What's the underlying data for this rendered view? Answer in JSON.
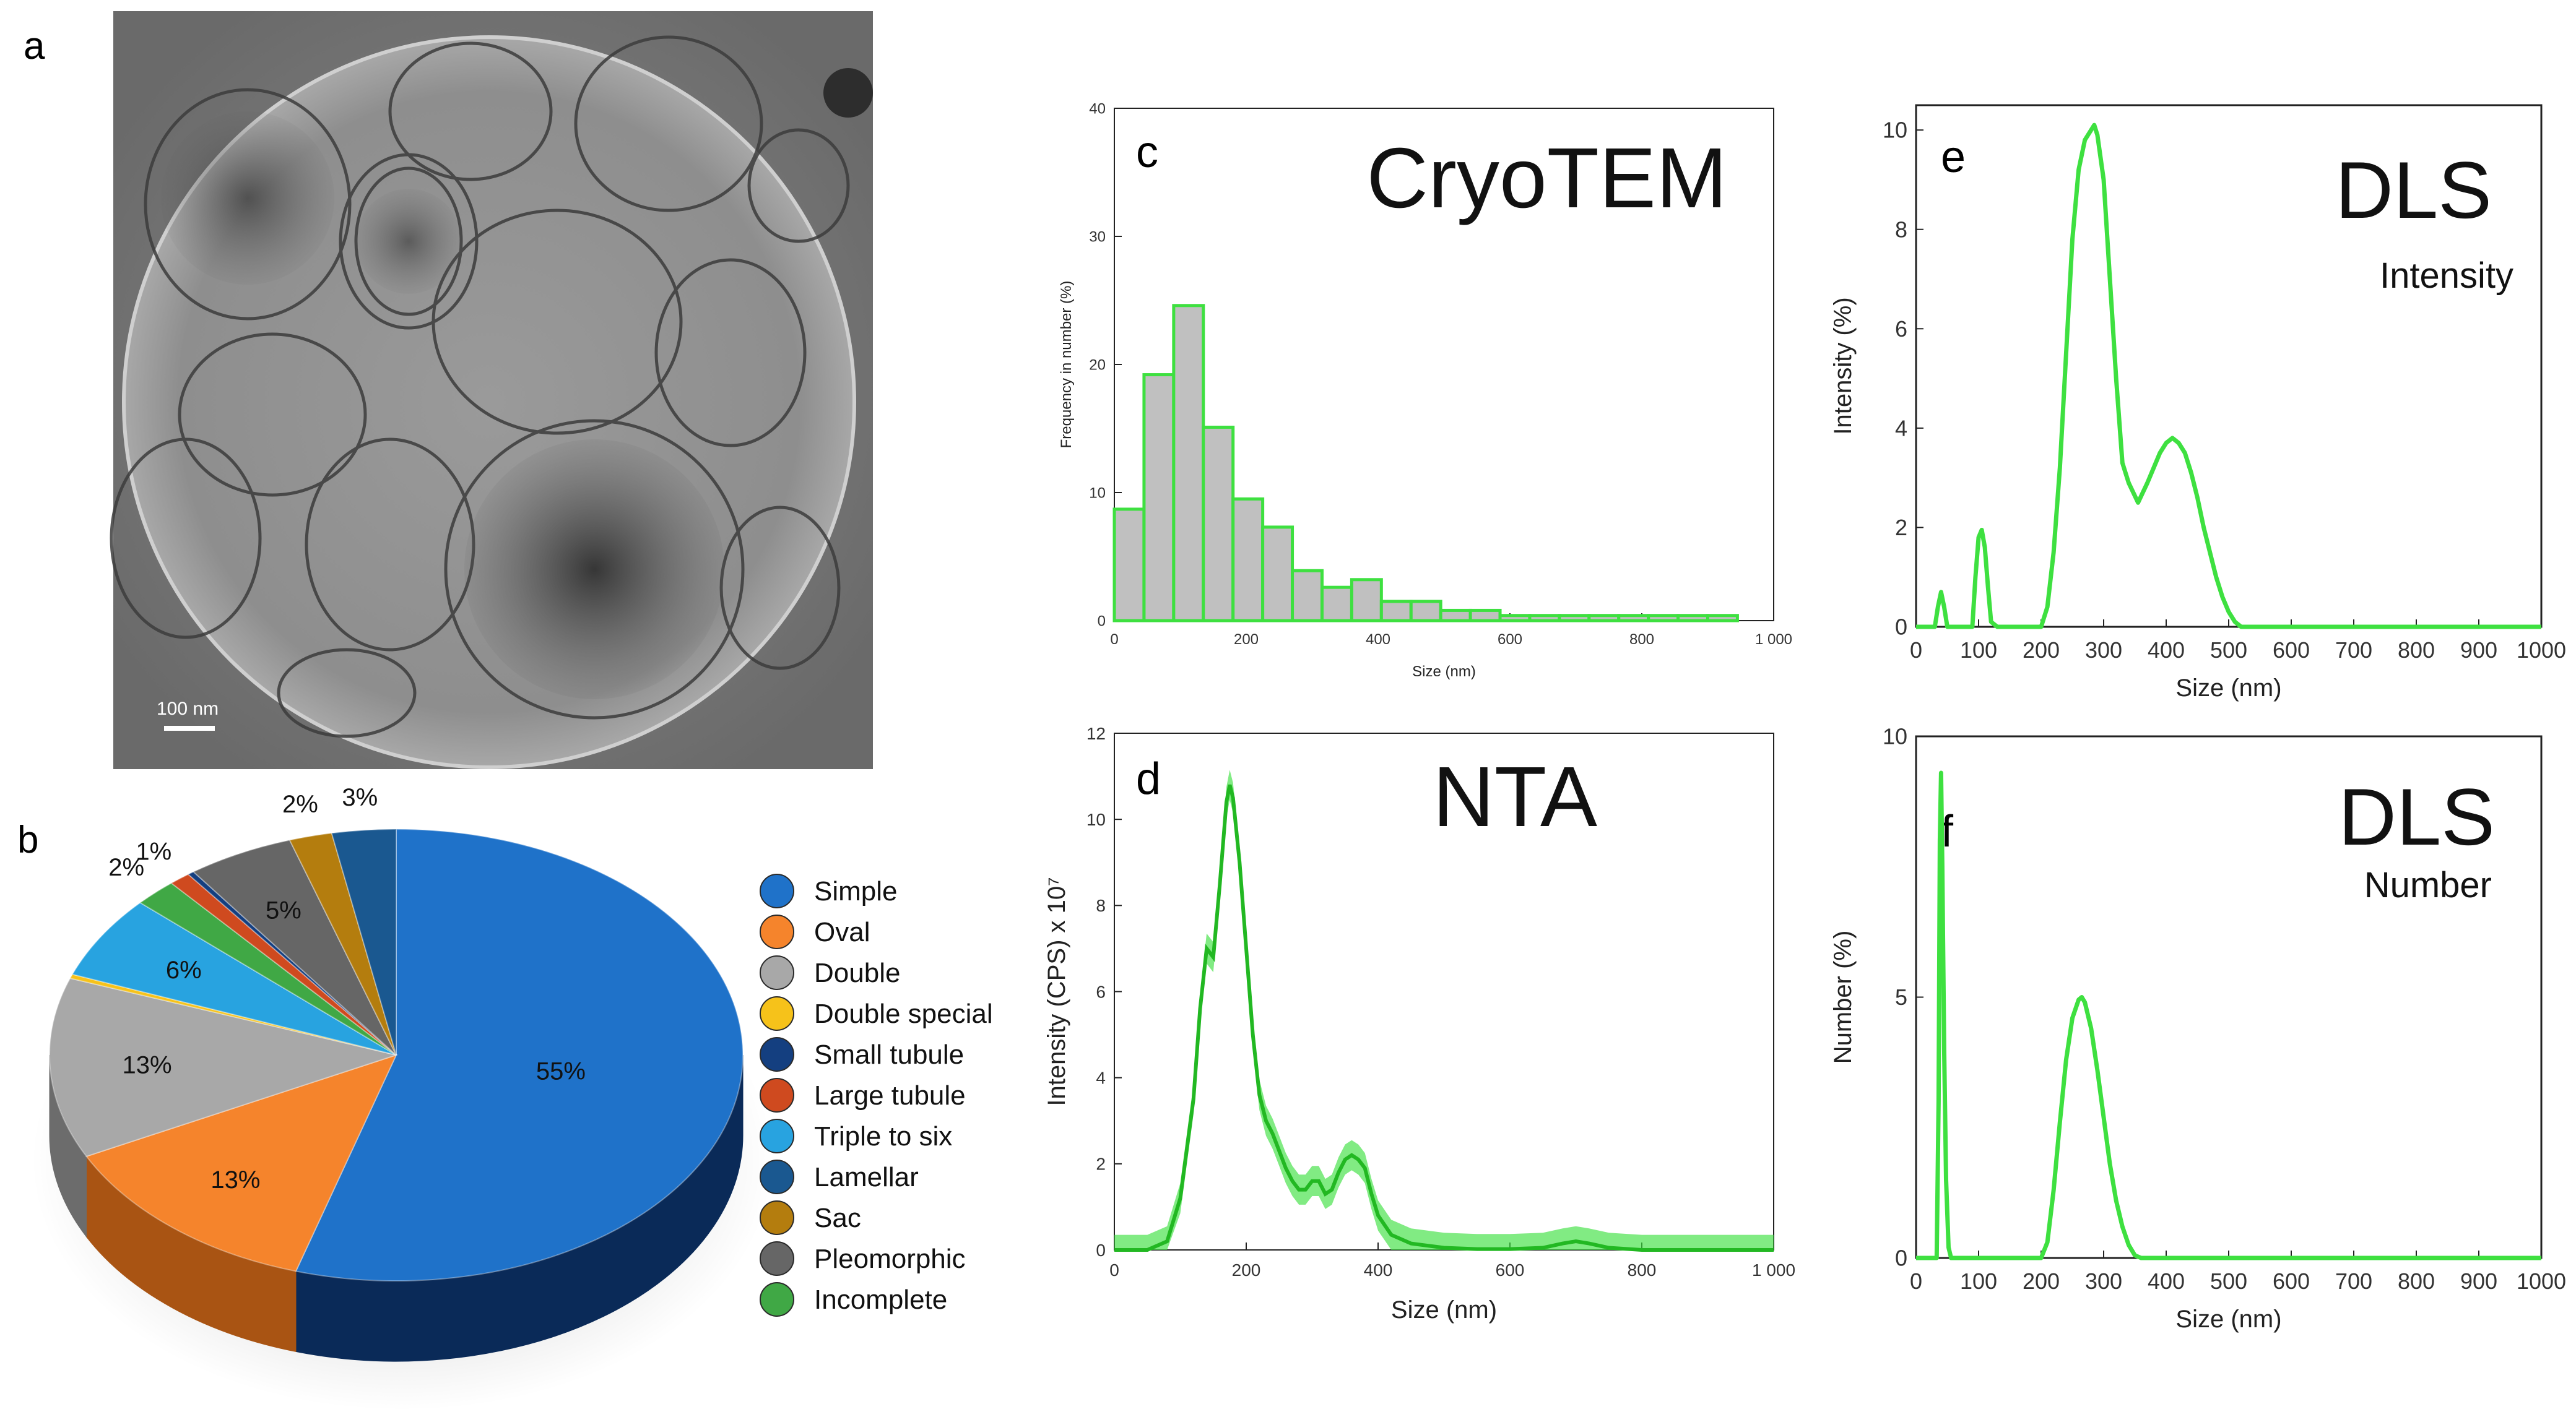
{
  "panel_labels": {
    "a": "a",
    "b": "b",
    "c": "c",
    "d": "d",
    "e": "e",
    "f": "f"
  },
  "micrograph": {
    "scale_bar_label": "100 nm"
  },
  "chart_data": [
    {
      "id": "b",
      "type": "pie",
      "slices": [
        {
          "label": "Simple",
          "value": 55,
          "text": "55%",
          "color": "#1f72c9",
          "side": "#0a2a58"
        },
        {
          "label": "Oval",
          "value": 13,
          "text": "13%",
          "color": "#f5842c",
          "side": "#a95413"
        },
        {
          "label": "Double",
          "value": 13,
          "text": "13%",
          "color": "#a8a8a8",
          "side": "#6c6c6c"
        },
        {
          "label": "Double special",
          "value": 0.3,
          "text": "",
          "color": "#f6c21a",
          "side": "#a37f0c"
        },
        {
          "label": "Triple to six",
          "value": 6,
          "text": "6%",
          "color": "#28a3e0",
          "side": "#14689a"
        },
        {
          "label": "Incomplete",
          "value": 2,
          "text": "2%",
          "color": "#40a845",
          "side": "#236b27"
        },
        {
          "label": "Large tubule",
          "value": 1,
          "text": "1%",
          "color": "#cf4a1f",
          "side": "#842b10"
        },
        {
          "label": "Small tubule",
          "value": 0.3,
          "text": "",
          "color": "#143f80",
          "side": "#0b2348"
        },
        {
          "label": "Pleomorphic",
          "value": 5,
          "text": "5%",
          "color": "#666666",
          "side": "#3c3c3c"
        },
        {
          "label": "Sac",
          "value": 2,
          "text": "2%",
          "color": "#b47d0e",
          "side": "#6d4a06"
        },
        {
          "label": "Lamellar",
          "value": 3,
          "text": "3%",
          "color": "#1a5890",
          "side": "#0c3158"
        }
      ],
      "legend": [
        {
          "label": "Simple",
          "color": "#1f72c9"
        },
        {
          "label": "Oval",
          "color": "#f5842c"
        },
        {
          "label": "Double",
          "color": "#a8a8a8"
        },
        {
          "label": "Double special",
          "color": "#f6c21a"
        },
        {
          "label": "Small tubule",
          "color": "#143f80"
        },
        {
          "label": "Large tubule",
          "color": "#cf4a1f"
        },
        {
          "label": "Triple to six",
          "color": "#28a3e0"
        },
        {
          "label": "Lamellar",
          "color": "#1a5890"
        },
        {
          "label": "Sac",
          "color": "#b47d0e"
        },
        {
          "label": "Pleomorphic",
          "color": "#666666"
        },
        {
          "label": "Incomplete",
          "color": "#40a845"
        }
      ]
    },
    {
      "id": "c",
      "type": "bar",
      "title": "CryoTEM",
      "xlabel": "Size (nm)",
      "ylabel": "Frequency in number (%)",
      "xlim": [
        0,
        1000
      ],
      "ylim": [
        0,
        40
      ],
      "xticks": [
        0,
        200,
        400,
        600,
        800,
        1000
      ],
      "xtick_labels": [
        "0",
        "200",
        "400",
        "600",
        "800",
        "1 000"
      ],
      "yticks": [
        0,
        10,
        20,
        30,
        40
      ],
      "bin_width": 45,
      "x": [
        0,
        45,
        90,
        135,
        180,
        225,
        270,
        315,
        360,
        405,
        450,
        495,
        540,
        585,
        630,
        675,
        720,
        765,
        810,
        855,
        900
      ],
      "values": [
        8.7,
        19.2,
        24.6,
        15.1,
        9.5,
        7.3,
        3.9,
        2.6,
        3.2,
        1.5,
        1.5,
        0.8,
        0.8,
        0.4,
        0.4,
        0.4,
        0.4,
        0.4,
        0.4,
        0.4,
        0.4
      ],
      "bar_color": "#c0c0c0",
      "edge_color": "#3ee040"
    },
    {
      "id": "d",
      "type": "line",
      "title": "NTA",
      "xlabel": "Size (nm)",
      "ylabel": "Intensity (CPS) x 10⁷",
      "xlim": [
        0,
        1000
      ],
      "ylim": [
        0,
        12
      ],
      "xticks": [
        0,
        200,
        400,
        600,
        800,
        1000
      ],
      "xtick_labels": [
        "0",
        "200",
        "400",
        "600",
        "800",
        "1 000"
      ],
      "yticks": [
        0,
        2,
        4,
        6,
        8,
        10,
        12
      ],
      "x": [
        0,
        50,
        80,
        100,
        120,
        130,
        140,
        150,
        160,
        170,
        175,
        180,
        190,
        200,
        210,
        220,
        230,
        240,
        250,
        260,
        270,
        280,
        290,
        300,
        310,
        320,
        330,
        340,
        350,
        360,
        370,
        380,
        390,
        400,
        420,
        450,
        500,
        550,
        600,
        650,
        680,
        700,
        720,
        750,
        800,
        900,
        1000
      ],
      "values": [
        0,
        0,
        0.2,
        1.2,
        3.5,
        5.6,
        7.0,
        6.8,
        8.5,
        10.4,
        10.8,
        10.5,
        9.0,
        7.0,
        5.0,
        3.6,
        3.0,
        2.7,
        2.3,
        1.9,
        1.6,
        1.4,
        1.4,
        1.6,
        1.6,
        1.3,
        1.4,
        1.8,
        2.1,
        2.2,
        2.1,
        1.9,
        1.3,
        0.8,
        0.35,
        0.15,
        0.05,
        0.02,
        0.02,
        0.05,
        0.15,
        0.2,
        0.15,
        0.05,
        0,
        0,
        0
      ],
      "band": 0.35,
      "color": "#3ee040"
    },
    {
      "id": "e",
      "type": "line",
      "title": "DLS",
      "subtitle": "Intensity",
      "xlabel": "Size (nm)",
      "ylabel": "Intensity (%)",
      "xlim": [
        0,
        1000
      ],
      "ylim": [
        0,
        10.5
      ],
      "xticks": [
        0,
        100,
        200,
        300,
        400,
        500,
        600,
        700,
        800,
        900,
        1000
      ],
      "yticks": [
        0,
        2,
        4,
        6,
        8,
        10
      ],
      "x": [
        0,
        20,
        30,
        35,
        40,
        45,
        50,
        60,
        80,
        90,
        95,
        100,
        105,
        110,
        115,
        120,
        130,
        140,
        160,
        180,
        200,
        210,
        220,
        230,
        240,
        250,
        260,
        270,
        280,
        285,
        290,
        300,
        310,
        320,
        330,
        340,
        355,
        370,
        380,
        390,
        400,
        410,
        420,
        430,
        440,
        450,
        460,
        470,
        480,
        490,
        500,
        510,
        520,
        600,
        800,
        1000
      ],
      "values": [
        0,
        0,
        0,
        0.4,
        0.7,
        0.4,
        0,
        0,
        0,
        0,
        1.0,
        1.8,
        1.95,
        1.6,
        0.8,
        0.1,
        0,
        0,
        0,
        0,
        0,
        0.4,
        1.5,
        3.2,
        5.5,
        7.8,
        9.2,
        9.8,
        10.0,
        10.1,
        9.9,
        9.0,
        7.0,
        5.0,
        3.3,
        2.9,
        2.5,
        2.9,
        3.2,
        3.5,
        3.7,
        3.8,
        3.7,
        3.5,
        3.1,
        2.6,
        2.0,
        1.5,
        1.0,
        0.6,
        0.3,
        0.1,
        0,
        0,
        0,
        0
      ],
      "color": "#3ee040"
    },
    {
      "id": "f",
      "type": "line",
      "title": "DLS",
      "subtitle": "Number",
      "xlabel": "Size (nm)",
      "ylabel": "Number (%)",
      "xlim": [
        0,
        1000
      ],
      "ylim": [
        0,
        10
      ],
      "xticks": [
        0,
        100,
        200,
        300,
        400,
        500,
        600,
        700,
        800,
        900,
        1000
      ],
      "yticks": [
        0,
        5,
        10
      ],
      "x": [
        0,
        25,
        33,
        36,
        38,
        40,
        42,
        45,
        48,
        52,
        56,
        100,
        180,
        200,
        210,
        220,
        230,
        240,
        250,
        260,
        265,
        270,
        280,
        290,
        300,
        310,
        320,
        330,
        340,
        350,
        360,
        400,
        1000
      ],
      "values": [
        0,
        0,
        0,
        3.0,
        8.0,
        9.3,
        7.5,
        4.0,
        1.5,
        0.2,
        0,
        0,
        0,
        0,
        0.3,
        1.3,
        2.6,
        3.8,
        4.6,
        4.95,
        5.0,
        4.9,
        4.4,
        3.6,
        2.7,
        1.8,
        1.1,
        0.6,
        0.25,
        0.05,
        0,
        0,
        0
      ],
      "color": "#3ee040"
    }
  ]
}
